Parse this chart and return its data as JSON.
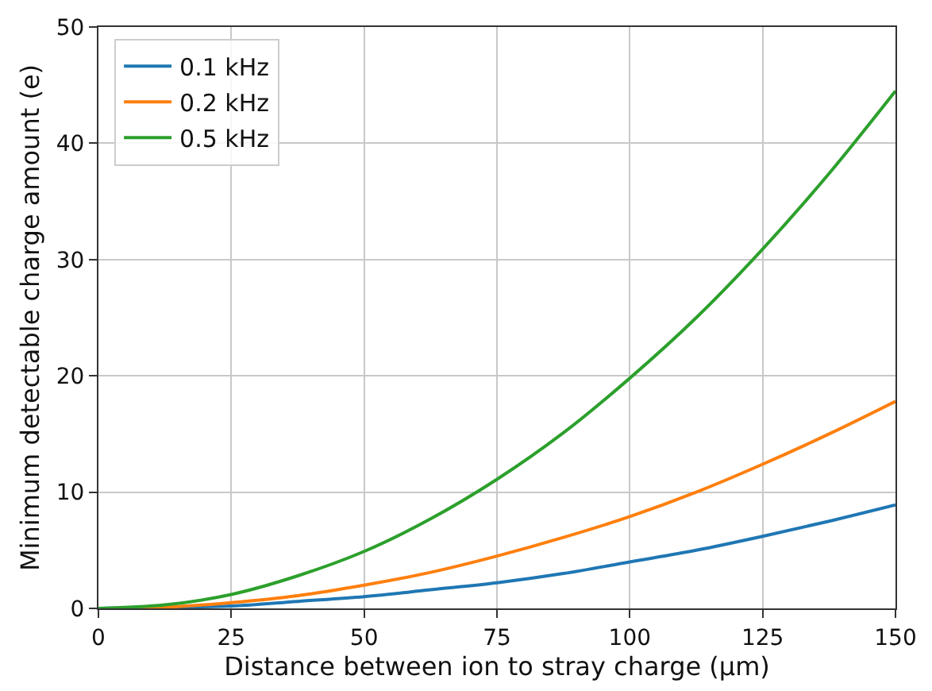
{
  "chart_data": {
    "type": "line",
    "xlabel": "Distance between ion to stray charge (µm)",
    "ylabel": "Minimum detectable charge amount (e)",
    "x": [
      0,
      12.5,
      25,
      37.5,
      50,
      62.5,
      75,
      87.5,
      100,
      112.5,
      125,
      137.5,
      150
    ],
    "series": [
      {
        "name": "0.1 kHz",
        "color": "#1f77b4",
        "values": [
          0,
          0.1,
          0.2,
          0.6,
          1.0,
          1.6,
          2.2,
          3.0,
          4.0,
          5.0,
          6.2,
          7.5,
          8.9
        ]
      },
      {
        "name": "0.2 kHz",
        "color": "#ff7f0e",
        "values": [
          0,
          0.1,
          0.5,
          1.1,
          2.0,
          3.1,
          4.5,
          6.1,
          7.9,
          10.0,
          12.4,
          15.0,
          17.8
        ]
      },
      {
        "name": "0.5 kHz",
        "color": "#2ca02c",
        "values": [
          0,
          0.3,
          1.2,
          2.8,
          4.9,
          7.7,
          11.1,
          15.1,
          19.8,
          25.0,
          30.9,
          37.4,
          44.5
        ]
      }
    ],
    "xlim": [
      0,
      150
    ],
    "xticks": [
      0,
      25,
      50,
      75,
      100,
      125,
      150
    ],
    "ylim": [
      0,
      50
    ],
    "yticks": [
      0,
      10,
      20,
      30,
      40,
      50
    ],
    "grid": true,
    "legend": "top left",
    "marker": "none",
    "line_style": "solid"
  }
}
